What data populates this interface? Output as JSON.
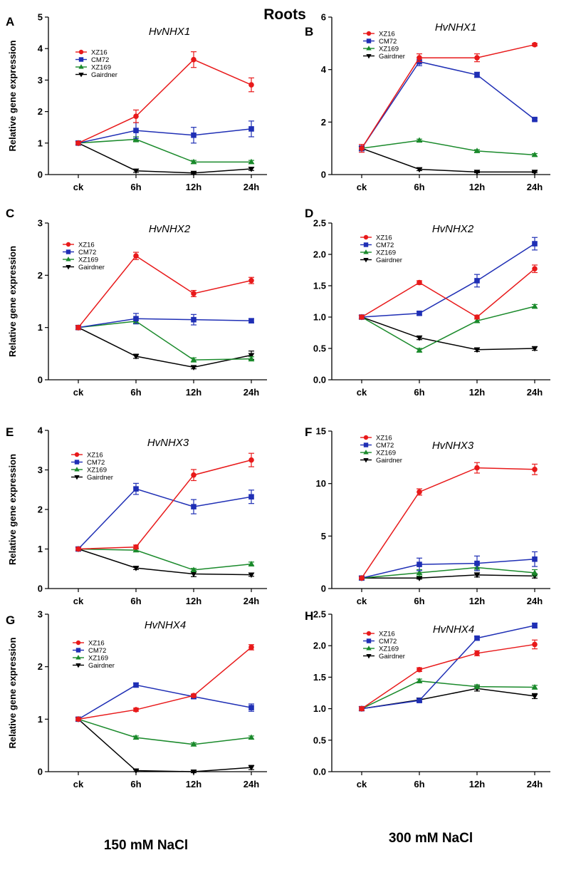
{
  "figure": {
    "title": "Roots",
    "bottom_labels": [
      "150 mM NaCl",
      "300 mM NaCl"
    ]
  },
  "legend_labels": [
    "XZ16",
    "CM72",
    "XZ169",
    "Gairdner"
  ],
  "colors": {
    "XZ16": "#e8191a",
    "CM72": "#1f2fb5",
    "XZ169": "#1a8a2b",
    "Gairdner": "#000000"
  },
  "chart_data": [
    {
      "panel": "A",
      "type": "line",
      "title": "HvNHX1",
      "xlabel": "",
      "ylabel": "Relative gene expression",
      "categories": [
        "ck",
        "6h",
        "12h",
        "24h"
      ],
      "ylim": [
        0,
        5
      ],
      "yticks": [
        "0",
        "1",
        "2",
        "3",
        "4",
        "5"
      ],
      "series": [
        {
          "name": "XZ16",
          "values": [
            1.0,
            1.85,
            3.65,
            2.85
          ],
          "errors": [
            0.05,
            0.2,
            0.25,
            0.22
          ]
        },
        {
          "name": "CM72",
          "values": [
            1.0,
            1.4,
            1.25,
            1.45
          ],
          "errors": [
            0.05,
            0.25,
            0.25,
            0.25
          ]
        },
        {
          "name": "XZ169",
          "values": [
            1.0,
            1.12,
            0.4,
            0.4
          ],
          "errors": [
            0.05,
            0.08,
            0.05,
            0.05
          ]
        },
        {
          "name": "Gairdner",
          "values": [
            1.0,
            0.12,
            0.05,
            0.18
          ],
          "errors": [
            0.05,
            0.05,
            0.03,
            0.05
          ]
        }
      ]
    },
    {
      "panel": "B",
      "type": "line",
      "title": "HvNHX1",
      "xlabel": "",
      "ylabel": "",
      "categories": [
        "ck",
        "6h",
        "12h",
        "24h"
      ],
      "ylim": [
        0,
        6
      ],
      "yticks": [
        "0",
        "2",
        "4",
        "6"
      ],
      "series": [
        {
          "name": "XZ16",
          "values": [
            1.0,
            4.45,
            4.45,
            4.95
          ],
          "errors": [
            0.15,
            0.15,
            0.15,
            0.05
          ]
        },
        {
          "name": "CM72",
          "values": [
            1.0,
            4.3,
            3.8,
            2.1
          ],
          "errors": [
            0.1,
            0.15,
            0.1,
            0.05
          ]
        },
        {
          "name": "XZ169",
          "values": [
            1.0,
            1.3,
            0.9,
            0.75
          ],
          "errors": [
            0.05,
            0.05,
            0.05,
            0.05
          ]
        },
        {
          "name": "Gairdner",
          "values": [
            1.0,
            0.2,
            0.1,
            0.1
          ],
          "errors": [
            0.05,
            0.05,
            0.03,
            0.03
          ]
        }
      ]
    },
    {
      "panel": "C",
      "type": "line",
      "title": "HvNHX2",
      "xlabel": "",
      "ylabel": "Relative gene expression",
      "categories": [
        "ck",
        "6h",
        "12h",
        "24h"
      ],
      "ylim": [
        0,
        3
      ],
      "yticks": [
        "0",
        "1",
        "2",
        "3"
      ],
      "series": [
        {
          "name": "XZ16",
          "values": [
            1.0,
            2.37,
            1.65,
            1.9
          ],
          "errors": [
            0.04,
            0.07,
            0.06,
            0.06
          ]
        },
        {
          "name": "CM72",
          "values": [
            1.0,
            1.17,
            1.15,
            1.13
          ],
          "errors": [
            0.04,
            0.1,
            0.1,
            0.04
          ]
        },
        {
          "name": "XZ169",
          "values": [
            1.0,
            1.12,
            0.38,
            0.4
          ],
          "errors": [
            0.04,
            0.05,
            0.04,
            0.04
          ]
        },
        {
          "name": "Gairdner",
          "values": [
            1.0,
            0.45,
            0.24,
            0.47
          ],
          "errors": [
            0.04,
            0.04,
            0.03,
            0.08
          ]
        }
      ]
    },
    {
      "panel": "D",
      "type": "line",
      "title": "HvNHX2",
      "xlabel": "",
      "ylabel": "",
      "categories": [
        "ck",
        "6h",
        "12h",
        "24h"
      ],
      "ylim": [
        0,
        2.5
      ],
      "yticks": [
        "0.0",
        "0.5",
        "1.0",
        "1.5",
        "2.0",
        "2.5"
      ],
      "series": [
        {
          "name": "XZ16",
          "values": [
            1.0,
            1.55,
            1.0,
            1.77
          ],
          "errors": [
            0.03,
            0.03,
            0.03,
            0.06
          ]
        },
        {
          "name": "CM72",
          "values": [
            1.0,
            1.06,
            1.58,
            2.17
          ],
          "errors": [
            0.03,
            0.03,
            0.1,
            0.1
          ]
        },
        {
          "name": "XZ169",
          "values": [
            1.0,
            0.47,
            0.94,
            1.17
          ],
          "errors": [
            0.03,
            0.03,
            0.03,
            0.03
          ]
        },
        {
          "name": "Gairdner",
          "values": [
            1.0,
            0.67,
            0.48,
            0.5
          ],
          "errors": [
            0.03,
            0.03,
            0.03,
            0.03
          ]
        }
      ]
    },
    {
      "panel": "E",
      "type": "line",
      "title": "HvNHX3",
      "xlabel": "",
      "ylabel": "Relative gene expression",
      "categories": [
        "ck",
        "6h",
        "12h",
        "24h"
      ],
      "ylim": [
        0,
        4
      ],
      "yticks": [
        "0",
        "1",
        "2",
        "3",
        "4"
      ],
      "series": [
        {
          "name": "XZ16",
          "values": [
            1.0,
            1.05,
            2.87,
            3.25
          ],
          "errors": [
            0.04,
            0.05,
            0.14,
            0.17
          ]
        },
        {
          "name": "CM72",
          "values": [
            1.0,
            2.52,
            2.07,
            2.32
          ],
          "errors": [
            0.04,
            0.14,
            0.18,
            0.17
          ]
        },
        {
          "name": "XZ169",
          "values": [
            1.0,
            0.97,
            0.47,
            0.62
          ],
          "errors": [
            0.04,
            0.04,
            0.04,
            0.05
          ]
        },
        {
          "name": "Gairdner",
          "values": [
            1.0,
            0.52,
            0.37,
            0.35
          ],
          "errors": [
            0.04,
            0.04,
            0.07,
            0.04
          ]
        }
      ]
    },
    {
      "panel": "F",
      "type": "line",
      "title": "HvNHX3",
      "xlabel": "",
      "ylabel": "",
      "categories": [
        "ck",
        "6h",
        "12h",
        "24h"
      ],
      "ylim": [
        0,
        15
      ],
      "yticks": [
        "0",
        "5",
        "10",
        "15"
      ],
      "series": [
        {
          "name": "XZ16",
          "values": [
            1.0,
            9.2,
            11.5,
            11.35
          ],
          "errors": [
            0.1,
            0.3,
            0.5,
            0.5
          ]
        },
        {
          "name": "CM72",
          "values": [
            1.0,
            2.3,
            2.4,
            2.8
          ],
          "errors": [
            0.1,
            0.6,
            0.7,
            0.7
          ]
        },
        {
          "name": "XZ169",
          "values": [
            1.0,
            1.5,
            2.0,
            1.5
          ],
          "errors": [
            0.1,
            0.3,
            0.3,
            0.3
          ]
        },
        {
          "name": "Gairdner",
          "values": [
            1.0,
            1.0,
            1.3,
            1.2
          ],
          "errors": [
            0.1,
            0.1,
            0.2,
            0.2
          ]
        }
      ]
    },
    {
      "panel": "G",
      "type": "line",
      "title": "HvNHX4",
      "xlabel": "",
      "ylabel": "Relative gene expression",
      "categories": [
        "ck",
        "6h",
        "12h",
        "24h"
      ],
      "ylim": [
        0,
        3
      ],
      "yticks": [
        "0",
        "1",
        "2",
        "3"
      ],
      "series": [
        {
          "name": "XZ16",
          "values": [
            1.0,
            1.18,
            1.45,
            2.37
          ],
          "errors": [
            0.03,
            0.03,
            0.03,
            0.05
          ]
        },
        {
          "name": "CM72",
          "values": [
            1.0,
            1.65,
            1.43,
            1.22
          ],
          "errors": [
            0.03,
            0.04,
            0.04,
            0.07
          ]
        },
        {
          "name": "XZ169",
          "values": [
            1.0,
            0.65,
            0.52,
            0.65
          ],
          "errors": [
            0.03,
            0.03,
            0.03,
            0.03
          ]
        },
        {
          "name": "Gairdner",
          "values": [
            1.0,
            0.02,
            0.0,
            0.08
          ],
          "errors": [
            0.03,
            0.02,
            0.02,
            0.04
          ]
        }
      ]
    },
    {
      "panel": "H",
      "type": "line",
      "title": "HvNHX4",
      "xlabel": "",
      "ylabel": "",
      "categories": [
        "ck",
        "6h",
        "12h",
        "24h"
      ],
      "ylim": [
        0,
        2.5
      ],
      "yticks": [
        "0.0",
        "0.5",
        "1.0",
        "1.5",
        "2.0",
        "2.5"
      ],
      "series": [
        {
          "name": "XZ16",
          "values": [
            1.0,
            1.62,
            1.88,
            2.02
          ],
          "errors": [
            0.03,
            0.03,
            0.04,
            0.07
          ]
        },
        {
          "name": "CM72",
          "values": [
            1.0,
            1.13,
            2.12,
            2.32
          ],
          "errors": [
            0.03,
            0.03,
            0.03,
            0.04
          ]
        },
        {
          "name": "XZ169",
          "values": [
            1.0,
            1.44,
            1.35,
            1.34
          ],
          "errors": [
            0.03,
            0.03,
            0.03,
            0.03
          ]
        },
        {
          "name": "Gairdner",
          "values": [
            1.0,
            1.14,
            1.32,
            1.2
          ],
          "errors": [
            0.03,
            0.03,
            0.04,
            0.04
          ]
        }
      ]
    }
  ]
}
